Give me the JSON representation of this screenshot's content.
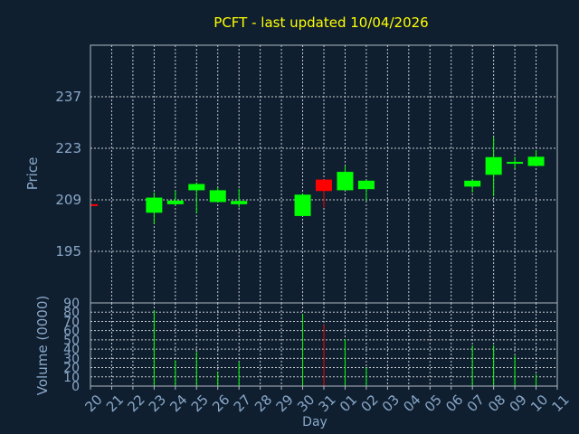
{
  "chart_data": {
    "type": "candlestick",
    "title": "PCFT - last updated 10/04/2026",
    "price_axis": {
      "label": "Price",
      "ticks": [
        195,
        209,
        223,
        237
      ],
      "range": [
        181,
        251
      ]
    },
    "volume_axis": {
      "label": "Volume (0000)",
      "ticks": [
        0,
        10,
        20,
        30,
        40,
        50,
        60,
        70,
        80,
        90
      ],
      "range": [
        0,
        90
      ]
    },
    "x_axis": {
      "label": "Day",
      "ticks": [
        "20",
        "21",
        "22",
        "23",
        "24",
        "25",
        "26",
        "27",
        "28",
        "29",
        "30",
        "31",
        "01",
        "02",
        "03",
        "04",
        "05",
        "06",
        "07",
        "08",
        "09",
        "10",
        "11"
      ]
    },
    "grid": true,
    "colors": {
      "background": "#0f1f30",
      "frame": "#b0b8c0",
      "grid": "#c8ccd0",
      "title": "#ffff00",
      "axis_text": "#8aa8c8",
      "up": "#00ff00",
      "down": "#ff0000"
    },
    "candles": [
      {
        "day": "20",
        "open": 207.8,
        "close": 207.5,
        "high": 207.8,
        "low": 207.5
      },
      {
        "day": "23",
        "open": 205.5,
        "close": 209.6,
        "high": 211.0,
        "low": 202.5
      },
      {
        "day": "24",
        "open": 207.8,
        "close": 208.8,
        "high": 211.5,
        "low": 207.5
      },
      {
        "day": "25",
        "open": 211.6,
        "close": 213.3,
        "high": 213.8,
        "low": 205.3
      },
      {
        "day": "26",
        "open": 208.4,
        "close": 211.6,
        "high": 212.4,
        "low": 208.4
      },
      {
        "day": "27",
        "open": 207.8,
        "close": 208.7,
        "high": 212.0,
        "low": 206.9
      },
      {
        "day": "30",
        "open": 204.6,
        "close": 210.4,
        "high": 210.8,
        "low": 204.6
      },
      {
        "day": "31",
        "open": 214.5,
        "close": 211.4,
        "high": 214.5,
        "low": 206.9
      },
      {
        "day": "01",
        "open": 211.6,
        "close": 216.6,
        "high": 218.2,
        "low": 211.6
      },
      {
        "day": "02",
        "open": 211.9,
        "close": 214.2,
        "high": 214.5,
        "low": 208.8
      },
      {
        "day": "07",
        "open": 212.6,
        "close": 214.2,
        "high": 214.5,
        "low": 211.0
      },
      {
        "day": "08",
        "open": 215.8,
        "close": 220.6,
        "high": 226.0,
        "low": 210.0
      },
      {
        "day": "09",
        "open": 219.0,
        "close": 219.3,
        "high": 220.7,
        "low": 217.5
      },
      {
        "day": "10",
        "open": 218.2,
        "close": 220.7,
        "high": 222.5,
        "low": 218.2
      }
    ],
    "volume": [
      {
        "day": "23",
        "value": 82,
        "dir": "up"
      },
      {
        "day": "24",
        "value": 28,
        "dir": "up"
      },
      {
        "day": "25",
        "value": 37,
        "dir": "up"
      },
      {
        "day": "26",
        "value": 15,
        "dir": "up"
      },
      {
        "day": "27",
        "value": 26,
        "dir": "up"
      },
      {
        "day": "30",
        "value": 78,
        "dir": "up"
      },
      {
        "day": "31",
        "value": 66,
        "dir": "down"
      },
      {
        "day": "01",
        "value": 51,
        "dir": "up"
      },
      {
        "day": "02",
        "value": 20,
        "dir": "up"
      },
      {
        "day": "07",
        "value": 44,
        "dir": "up"
      },
      {
        "day": "08",
        "value": 44,
        "dir": "up"
      },
      {
        "day": "09",
        "value": 33,
        "dir": "up"
      },
      {
        "day": "10",
        "value": 13,
        "dir": "up"
      }
    ]
  }
}
